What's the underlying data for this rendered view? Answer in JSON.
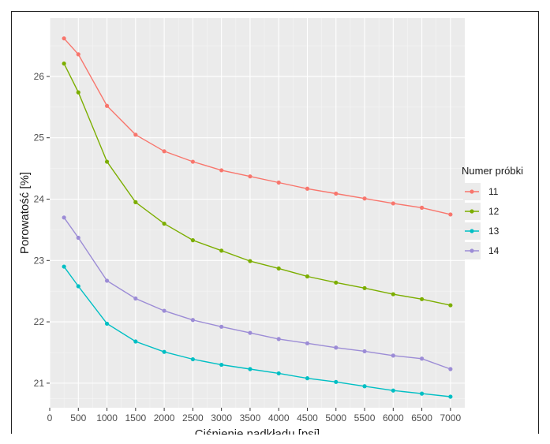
{
  "chart_data": {
    "type": "line",
    "xlabel": "Ciśnienie nadkładu [psi]",
    "ylabel": "Porowatość [%]",
    "xlim": [
      0,
      7250
    ],
    "ylim": [
      20.6,
      26.95
    ],
    "x_ticks": [
      "0",
      "500",
      "1000",
      "1500",
      "2000",
      "2500",
      "3000",
      "3500",
      "4000",
      "4500",
      "5000",
      "5500",
      "6000",
      "6500",
      "7000"
    ],
    "y_ticks": [
      "21",
      "22",
      "23",
      "24",
      "25",
      "26"
    ],
    "grid": true,
    "legend": {
      "title": "Numer próbki",
      "position": "right"
    },
    "x": [
      250,
      500,
      1000,
      1500,
      2000,
      2500,
      3000,
      3500,
      4000,
      4500,
      5000,
      5500,
      6000,
      6500,
      7000
    ],
    "series": [
      {
        "name": "11",
        "color": "#f8766d",
        "values": [
          26.62,
          26.36,
          25.52,
          25.05,
          24.78,
          24.61,
          24.47,
          24.37,
          24.27,
          24.17,
          24.09,
          24.01,
          23.93,
          23.86,
          23.75
        ]
      },
      {
        "name": "12",
        "color": "#7cae00",
        "values": [
          26.21,
          25.74,
          24.61,
          23.95,
          23.6,
          23.33,
          23.16,
          22.99,
          22.87,
          22.74,
          22.64,
          22.55,
          22.45,
          22.37,
          22.27
        ]
      },
      {
        "name": "13",
        "color": "#00bfc4",
        "values": [
          22.9,
          22.58,
          21.97,
          21.68,
          21.51,
          21.39,
          21.3,
          21.23,
          21.16,
          21.08,
          21.02,
          20.95,
          20.88,
          20.83,
          20.78
        ]
      },
      {
        "name": "14",
        "color": "#9c8cd6",
        "values": [
          23.7,
          23.37,
          22.67,
          22.38,
          22.18,
          22.03,
          21.92,
          21.82,
          21.72,
          21.65,
          21.58,
          21.52,
          21.45,
          21.4,
          21.23
        ]
      }
    ]
  }
}
